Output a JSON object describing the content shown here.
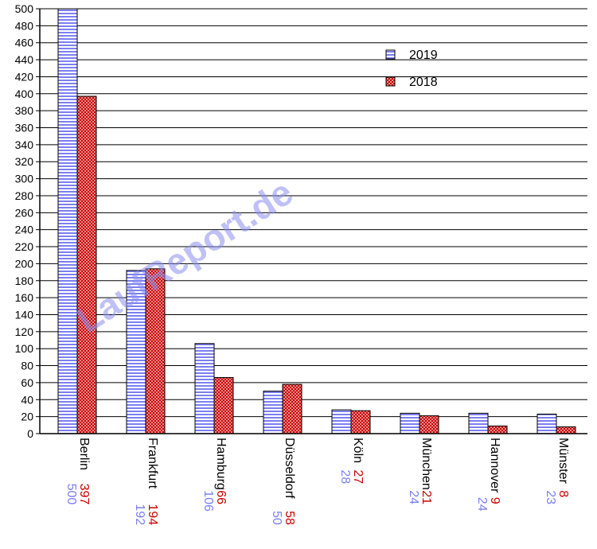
{
  "chart_data": {
    "type": "bar",
    "categories": [
      "Berlin",
      "Frankfurt",
      "Hamburg",
      "Düsseldorf",
      "Köln",
      "München",
      "Hannover",
      "Münster"
    ],
    "series": [
      {
        "name": "2019",
        "values": [
          500,
          192,
          106,
          50,
          28,
          24,
          24,
          23
        ],
        "color": "#6b6ff0",
        "pattern": "horizontal-stripes"
      },
      {
        "name": "2018",
        "values": [
          397,
          194,
          66,
          58,
          27,
          21,
          9,
          8
        ],
        "color": "#cc0000",
        "pattern": "crosshatch"
      }
    ],
    "ylim": [
      0,
      500
    ],
    "ytick_step": 20,
    "grid": true,
    "legend_position": "top-right",
    "watermark": "LaufReport.de",
    "label_colors": {
      "2019": "#7b7ff0",
      "2018": "#cc0000"
    }
  }
}
